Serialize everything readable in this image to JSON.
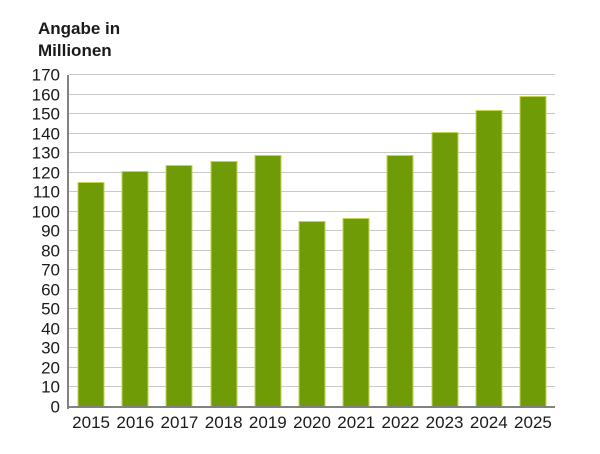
{
  "title": {
    "line1": "Angabe in",
    "line2": "Millionen"
  },
  "chart_data": {
    "type": "bar",
    "title": "Angabe in Millionen",
    "categories": [
      "2015",
      "2016",
      "2017",
      "2018",
      "2019",
      "2020",
      "2021",
      "2022",
      "2023",
      "2024",
      "2025"
    ],
    "values": [
      115,
      121,
      124,
      126,
      129,
      95,
      97,
      129,
      141,
      152,
      159
    ],
    "xlabel": "",
    "ylabel": "Angabe in Millionen",
    "ylim": [
      0,
      170
    ],
    "ytick_step": 10,
    "grid": "horizontal",
    "legend_position": "none",
    "colors": {
      "bar_fill": "#6f9b06",
      "bar_edge": "#c3d455",
      "gridline": "#c8c8c8",
      "axis": "#828282",
      "text": "#1a1a1a",
      "background": "#ffffff"
    }
  }
}
